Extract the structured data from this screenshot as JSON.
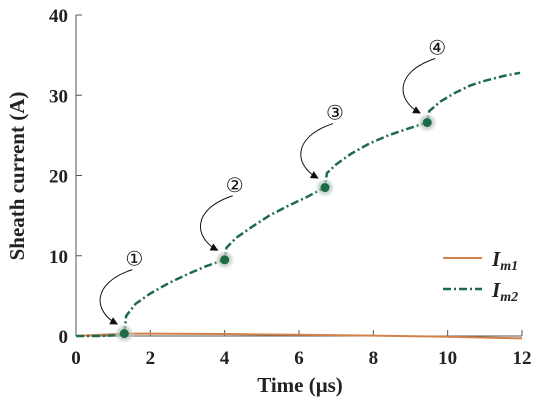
{
  "chart_data": {
    "type": "line",
    "xlabel": "Time (μs)",
    "ylabel": "Sheath current (A)",
    "xlim": [
      0,
      12
    ],
    "ylim": [
      0,
      40
    ],
    "xticks": [
      "0",
      "2",
      "4",
      "6",
      "8",
      "10",
      "12"
    ],
    "yticks": [
      "0",
      "10",
      "20",
      "30",
      "40"
    ],
    "grid": false,
    "legend_position": "bottom-right",
    "series": [
      {
        "name": "Im1",
        "name_main": "I",
        "name_sub": "m1",
        "color": "#d2814a",
        "style": "solid",
        "x": [
          0,
          1.3,
          2,
          4,
          6,
          8,
          10,
          12
        ],
        "y": [
          0,
          0.3,
          0.3,
          0.25,
          0.15,
          0.05,
          -0.1,
          -0.3
        ]
      },
      {
        "name": "Im2",
        "name_main": "I",
        "name_sub": "m2",
        "color": "#1d6b48",
        "style": "dash-dot",
        "x": [
          0,
          0.6,
          1.2,
          1.3,
          1.35,
          1.6,
          2.0,
          2.5,
          3.0,
          3.5,
          4.0,
          4.05,
          4.3,
          4.7,
          5.2,
          5.7,
          6.2,
          6.7,
          6.75,
          7.0,
          7.4,
          7.9,
          8.4,
          8.9,
          9.45,
          9.5,
          9.8,
          10.2,
          10.6,
          11.0,
          11.5,
          11.95
        ],
        "y": [
          0,
          0,
          0.1,
          0.3,
          2.5,
          4.0,
          5.3,
          6.6,
          7.7,
          8.7,
          9.5,
          11.0,
          12.2,
          13.5,
          15.0,
          16.2,
          17.3,
          18.5,
          20.3,
          21.4,
          22.7,
          24.0,
          25.0,
          25.8,
          26.6,
          28.0,
          29.2,
          30.3,
          31.2,
          31.8,
          32.4,
          32.8
        ]
      }
    ],
    "annotations": [
      {
        "label": "①",
        "point": [
          1.3,
          0.3
        ]
      },
      {
        "label": "②",
        "point": [
          4.0,
          9.5
        ]
      },
      {
        "label": "③",
        "point": [
          6.7,
          18.5
        ]
      },
      {
        "label": "④",
        "point": [
          9.45,
          26.6
        ]
      }
    ]
  }
}
